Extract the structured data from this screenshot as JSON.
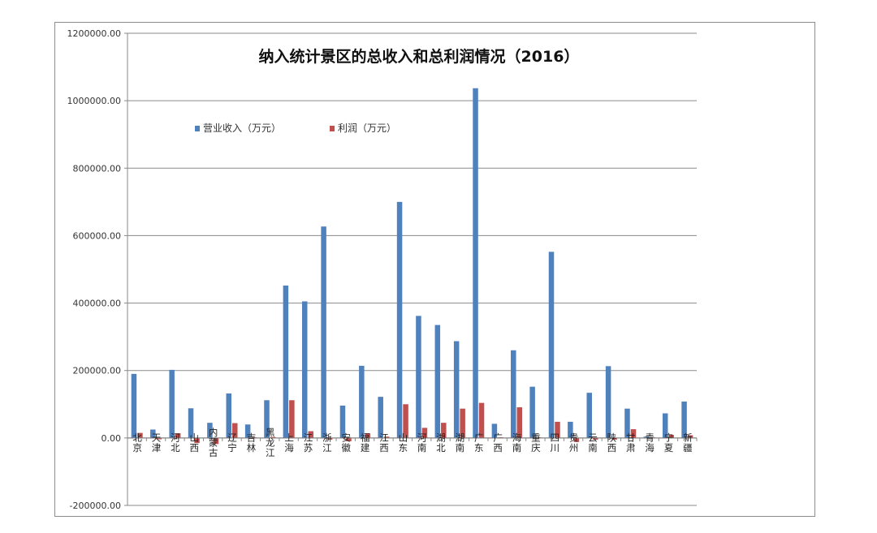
{
  "chart_data": {
    "type": "bar",
    "title": "纳入统计景区的总收入和总利润情况（2016）",
    "xlabel": "",
    "ylabel": "",
    "ylim": [
      -200000,
      1200000
    ],
    "yticks": [
      "1200000.00",
      "1000000.00",
      "800000.00",
      "600000.00",
      "400000.00",
      "200000.00",
      "0.00",
      "-200000.00"
    ],
    "ytick_values": [
      1200000,
      1000000,
      800000,
      600000,
      400000,
      200000,
      0,
      -200000
    ],
    "grid": true,
    "legend_position": "top-left",
    "categories": [
      "北京",
      "天津",
      "河北",
      "山西",
      "内蒙古",
      "辽宁",
      "吉林",
      "黑龙江",
      "上海",
      "江苏",
      "浙江",
      "安徽",
      "福建",
      "江西",
      "山东",
      "河南",
      "湖北",
      "湖南",
      "广东",
      "广西",
      "海南",
      "重庆",
      "四川",
      "贵州",
      "云南",
      "陕西",
      "甘肃",
      "青海",
      "宁夏",
      "新疆"
    ],
    "series": [
      {
        "name": "营业收入（万元）",
        "color": "#4f81bd",
        "values": [
          190000,
          25000,
          202000,
          88000,
          45000,
          132000,
          40000,
          112000,
          452000,
          405000,
          627000,
          96000,
          214000,
          122000,
          700000,
          362000,
          335000,
          287000,
          1037000,
          42000,
          260000,
          152000,
          552000,
          48000,
          134000,
          213000,
          87000,
          4000,
          73000,
          108000
        ]
      },
      {
        "name": "利润（万元）",
        "color": "#c0504d",
        "values": [
          15000,
          -4000,
          14000,
          -15000,
          -18000,
          44000,
          2000,
          3000,
          112000,
          20000,
          -5000,
          -10000,
          14000,
          4000,
          100000,
          30000,
          45000,
          87000,
          104000,
          2000,
          91000,
          2000,
          48000,
          -12000,
          -5000,
          -5000,
          26000,
          2000,
          9000,
          8000
        ]
      }
    ]
  }
}
